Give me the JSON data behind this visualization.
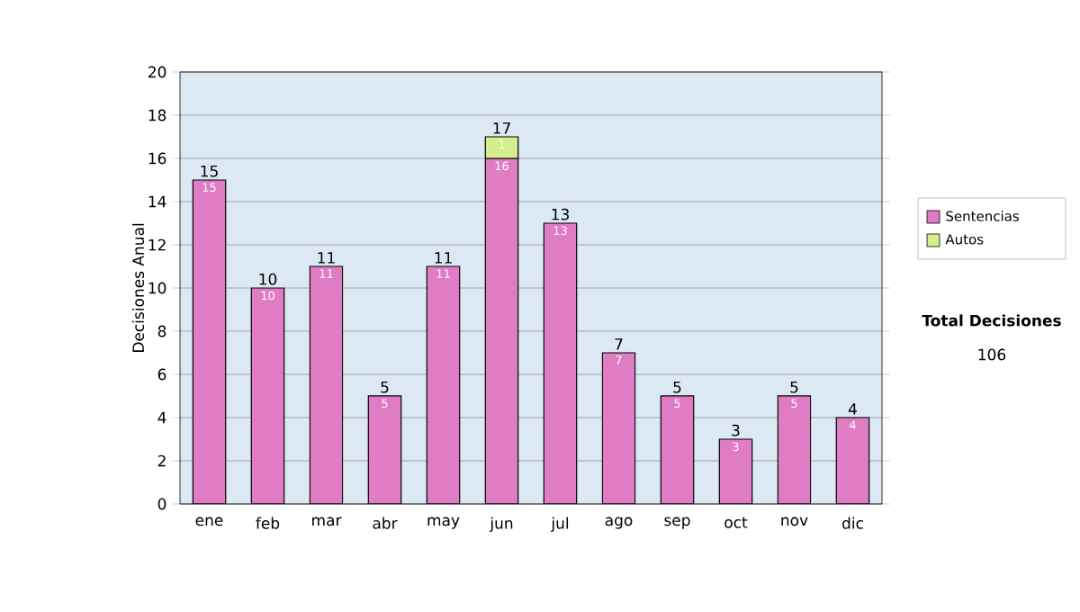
{
  "chart_data": {
    "type": "bar",
    "stacked": true,
    "ylabel": "Decisiones Anual",
    "categories": [
      "ene",
      "feb",
      "mar",
      "abr",
      "may",
      "jun",
      "jul",
      "ago",
      "sep",
      "oct",
      "nov",
      "dic"
    ],
    "series": [
      {
        "name": "Sentencias",
        "color": "#e07cc4",
        "values": [
          15,
          10,
          11,
          5,
          11,
          16,
          13,
          7,
          5,
          3,
          5,
          4
        ]
      },
      {
        "name": "Autos",
        "color": "#d4ee8c",
        "values": [
          null,
          null,
          null,
          null,
          null,
          1,
          null,
          null,
          null,
          null,
          null,
          null
        ]
      }
    ],
    "totals": [
      "15",
      "10",
      "11",
      "5",
      "11",
      "17",
      "13",
      "7",
      "5",
      "3",
      "5",
      "4"
    ],
    "data_labels": true,
    "ylim": [
      0,
      20
    ],
    "yticks": [
      0,
      2,
      4,
      6,
      8,
      10,
      12,
      14,
      16,
      18,
      20
    ],
    "grid": "y",
    "legend": "right",
    "annotations": [
      "**Total Decisiones**",
      "106"
    ]
  }
}
